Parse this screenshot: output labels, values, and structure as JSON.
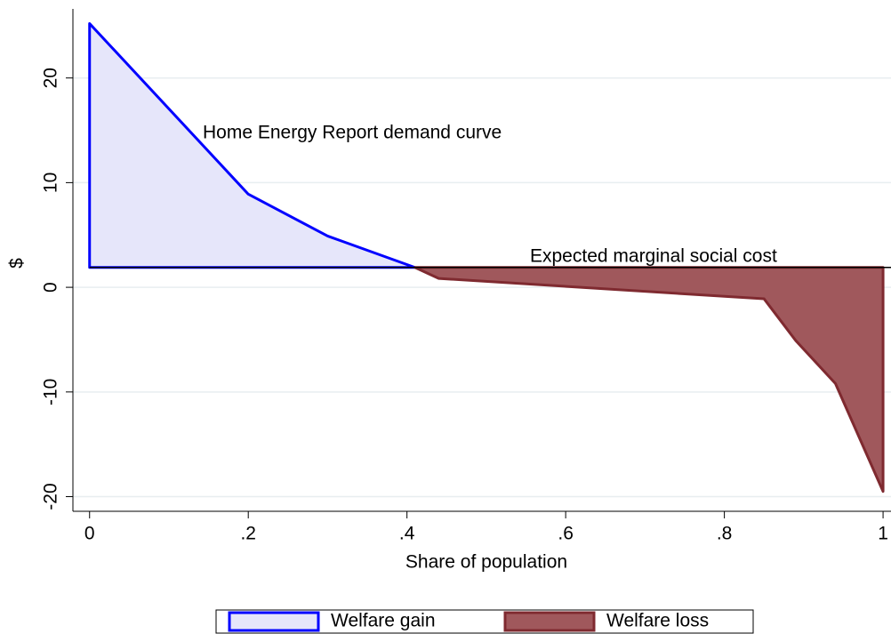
{
  "chart_data": {
    "type": "area",
    "x_label": "Share of population",
    "y_label": "$",
    "xlim": [
      -0.021,
      1.01
    ],
    "ylim": [
      -21.4,
      26.6
    ],
    "xticks": [
      0,
      {
        "value": 0.2,
        "label": ".2"
      },
      {
        "value": 0.4,
        "label": ".4"
      },
      {
        "value": 0.6,
        "label": ".6"
      },
      {
        "value": 0.8,
        "label": ".8"
      },
      1
    ],
    "yticks": [
      -20,
      -10,
      0,
      10,
      20
    ],
    "grid": true,
    "marginal_cost": 1.9,
    "annotations": [
      "Home Energy Report demand curve",
      "Expected marginal social cost"
    ],
    "series": [
      {
        "name": "Welfare gain",
        "color": "#e6e6fa",
        "edge": "#0000ff",
        "x": [
          0,
          0.2,
          0.3,
          0.41
        ],
        "values": [
          25.2,
          8.9,
          4.9,
          1.9
        ]
      },
      {
        "name": "Welfare loss",
        "color": "#a0585c",
        "edge": "#7f2a30",
        "x": [
          0.41,
          0.44,
          0.85,
          0.89,
          0.94,
          1
        ],
        "values": [
          1.9,
          0.85,
          -1.1,
          -5.1,
          -9.2,
          -19.5
        ]
      }
    ]
  }
}
